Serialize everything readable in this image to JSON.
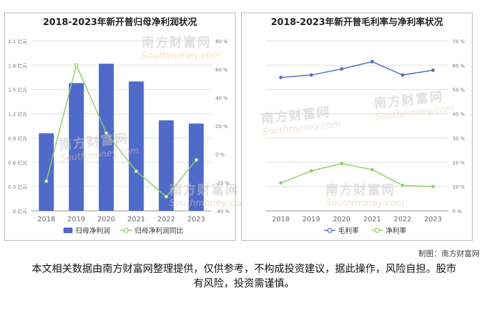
{
  "watermark": {
    "cn": "南方财富网",
    "en": "Southmoney.com"
  },
  "credit": "制图：南方财富网",
  "disclaimer": "本文相关数据由南方财富网整理提供，仅供参考，不构成投资建议，据此操作，风险自担。股市有风险，投资需谨慎。",
  "colors": {
    "bar": "#4f6ac8",
    "line_green": "#8fd16a",
    "line_blue": "#5470c6",
    "grid": "#dddddd",
    "axis_text": "#777777"
  },
  "chart_data": [
    {
      "type": "bar",
      "title": "2018-2023年新开普归母净利润状况",
      "categories": [
        "2018",
        "2019",
        "2020",
        "2021",
        "2022",
        "2023"
      ],
      "y_left_ticks": [
        "0 亿元",
        "0.3 亿元",
        "0.6 亿元",
        "0.9 亿元",
        "1.2 亿元",
        "1.5 亿元",
        "1.8 亿元",
        "2.1 亿元"
      ],
      "y_right_ticks": [
        "-40 %",
        "-20 %",
        "0 %",
        "20 %",
        "40 %",
        "60 %",
        "80 %"
      ],
      "ylim_left": [
        0,
        2.1
      ],
      "ylim_right": [
        -40,
        80
      ],
      "series": [
        {
          "name": "归母净利润",
          "kind": "bar",
          "axis": "left",
          "values": [
            0.96,
            1.58,
            1.82,
            1.6,
            1.12,
            1.08
          ]
        },
        {
          "name": "归母净利润同比",
          "kind": "line",
          "axis": "right",
          "values": [
            -19,
            63,
            15,
            -12,
            -30,
            -4
          ]
        }
      ],
      "legend": "bottom-center"
    },
    {
      "type": "line",
      "title": "2018-2023年新开普毛利率与净利率状况",
      "categories": [
        "2018",
        "2019",
        "2020",
        "2021",
        "2022",
        "2023"
      ],
      "y_right_ticks": [
        "0 %",
        "10 %",
        "20 %",
        "30 %",
        "40 %",
        "50 %",
        "60 %",
        "70 %"
      ],
      "ylim_right": [
        0,
        70
      ],
      "series": [
        {
          "name": "毛利率",
          "kind": "line",
          "values": [
            55,
            56,
            58.5,
            61.5,
            56,
            58
          ]
        },
        {
          "name": "净利率",
          "kind": "line",
          "values": [
            11.5,
            16.5,
            19.5,
            17,
            10.5,
            10
          ]
        }
      ],
      "legend": "bottom-center"
    }
  ]
}
